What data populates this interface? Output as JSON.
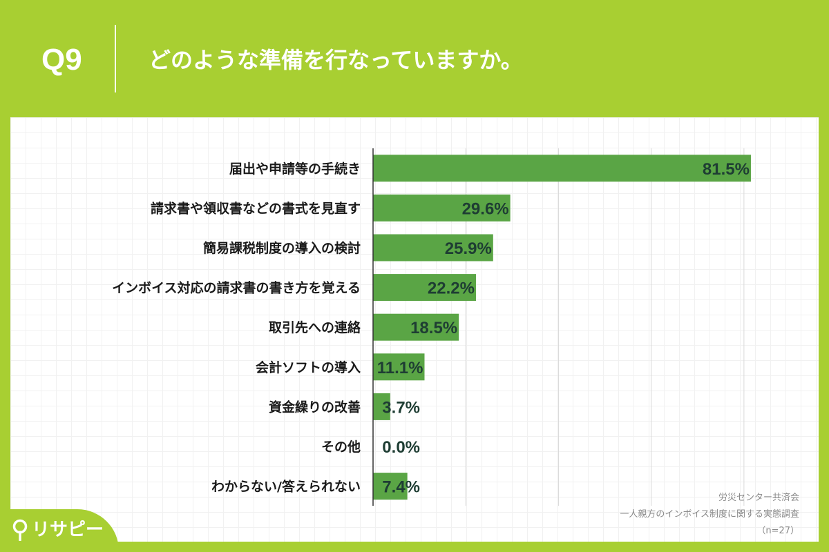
{
  "header": {
    "question_number": "Q9",
    "question_text": "どのような準備を行なっていますか。"
  },
  "colors": {
    "background": "#a8cf32",
    "bar": "#5aa545",
    "value_text": "#1e3d33"
  },
  "chart_data": {
    "type": "bar",
    "orientation": "horizontal",
    "categories": [
      "届出や申請等の手続き",
      "請求書や領収書などの書式を見直す",
      "簡易課税制度の導入の検討",
      "インボイス対応の請求書の書き方を覚える",
      "取引先への連絡",
      "会計ソフトの導入",
      "資金繰りの改善",
      "その他",
      "わからない/答えられない"
    ],
    "values": [
      81.5,
      29.6,
      25.9,
      22.2,
      18.5,
      11.1,
      3.7,
      0.0,
      7.4
    ],
    "value_labels": [
      "81.5%",
      "29.6%",
      "25.9%",
      "22.2%",
      "18.5%",
      "11.1%",
      "3.7%",
      "0.0%",
      "7.4%"
    ],
    "xlim": [
      0,
      90
    ],
    "grid": true
  },
  "footer": {
    "source_org": "労災センター共済会",
    "survey_title": "一人親方のインボイス制度に関する実態調査",
    "sample_size": "（n=27）"
  },
  "logo": {
    "icon": "map-pin-icon",
    "text": "リサピー"
  }
}
